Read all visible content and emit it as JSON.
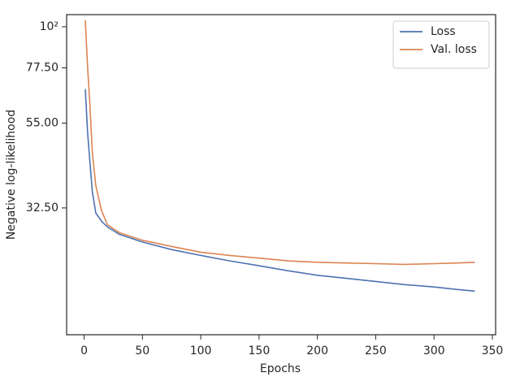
{
  "chart_data": {
    "type": "line",
    "xlabel": "Epochs",
    "ylabel": "Negative log-likelihood",
    "xlim": [
      -15,
      352.8
    ],
    "ylim": [
      14.8,
      107.8
    ],
    "yscale": "log",
    "xticks": [
      0,
      50,
      100,
      150,
      200,
      250,
      300,
      350
    ],
    "yticks": [
      {
        "value": 100,
        "label": "10²"
      },
      {
        "value": 77.5,
        "label": "77.50"
      },
      {
        "value": 55,
        "label": "55.00"
      },
      {
        "value": 32.5,
        "label": "32.50"
      }
    ],
    "grid": false,
    "legend": "upper right",
    "x": [
      1,
      3,
      5,
      7,
      10,
      15,
      20,
      30,
      50,
      75,
      100,
      125,
      150,
      175,
      200,
      225,
      250,
      275,
      300,
      320,
      335
    ],
    "series": [
      {
        "name": "Loss",
        "color": "#4c72b0",
        "values": [
          67.9,
          52.0,
          43.1,
          36.0,
          31.5,
          29.9,
          28.9,
          27.6,
          26.3,
          25.1,
          24.2,
          23.4,
          22.7,
          22.0,
          21.4,
          21.0,
          20.6,
          20.2,
          19.9,
          19.6,
          19.4
        ]
      },
      {
        "name": "Val. loss",
        "color": "#dd8452",
        "values": [
          104,
          78.0,
          61.4,
          46.0,
          37.3,
          31.9,
          29.3,
          27.9,
          26.6,
          25.6,
          24.7,
          24.2,
          23.8,
          23.4,
          23.2,
          23.1,
          23.0,
          22.9,
          23.0,
          23.1,
          23.2
        ]
      }
    ]
  }
}
